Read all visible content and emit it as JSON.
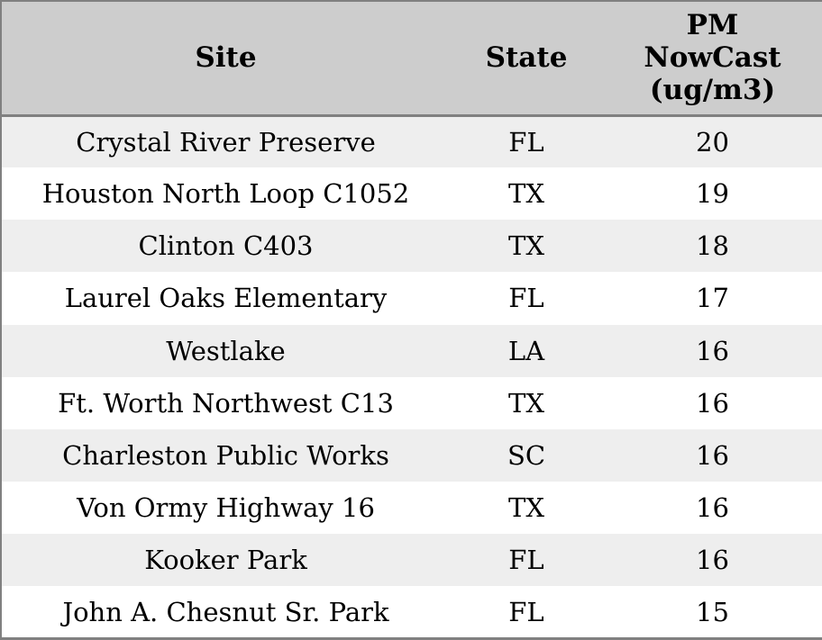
{
  "colors": {
    "header_bg": "#cdcdcd",
    "row_odd_bg": "#eeeeee",
    "row_even_bg": "#ffffff",
    "border": "#808080",
    "text": "#000000"
  },
  "table": {
    "columns": [
      {
        "label": "Site"
      },
      {
        "label": "State"
      },
      {
        "label": "PM NowCast (ug/m3)"
      }
    ],
    "rows": [
      {
        "site": "Crystal River Preserve",
        "state": "FL",
        "pm_nowcast": "20"
      },
      {
        "site": "Houston North Loop C1052",
        "state": "TX",
        "pm_nowcast": "19"
      },
      {
        "site": "Clinton C403",
        "state": "TX",
        "pm_nowcast": "18"
      },
      {
        "site": "Laurel Oaks Elementary",
        "state": "FL",
        "pm_nowcast": "17"
      },
      {
        "site": "Westlake",
        "state": "LA",
        "pm_nowcast": "16"
      },
      {
        "site": "Ft. Worth Northwest C13",
        "state": "TX",
        "pm_nowcast": "16"
      },
      {
        "site": "Charleston Public Works",
        "state": "SC",
        "pm_nowcast": "16"
      },
      {
        "site": "Von Ormy Highway 16",
        "state": "TX",
        "pm_nowcast": "16"
      },
      {
        "site": "Kooker Park",
        "state": "FL",
        "pm_nowcast": "16"
      },
      {
        "site": "John A. Chesnut Sr. Park",
        "state": "FL",
        "pm_nowcast": "15"
      }
    ]
  },
  "chart_data": {
    "type": "table",
    "columns": [
      "Site",
      "State",
      "PM NowCast (ug/m3)"
    ],
    "rows": [
      [
        "Crystal River Preserve",
        "FL",
        20
      ],
      [
        "Houston North Loop C1052",
        "TX",
        19
      ],
      [
        "Clinton C403",
        "TX",
        18
      ],
      [
        "Laurel Oaks Elementary",
        "FL",
        17
      ],
      [
        "Westlake",
        "LA",
        16
      ],
      [
        "Ft. Worth Northwest C13",
        "TX",
        16
      ],
      [
        "Charleston Public Works",
        "SC",
        16
      ],
      [
        "Von Ormy Highway 16",
        "TX",
        16
      ],
      [
        "Kooker Park",
        "FL",
        16
      ],
      [
        "John A. Chesnut Sr. Park",
        "FL",
        15
      ]
    ]
  }
}
